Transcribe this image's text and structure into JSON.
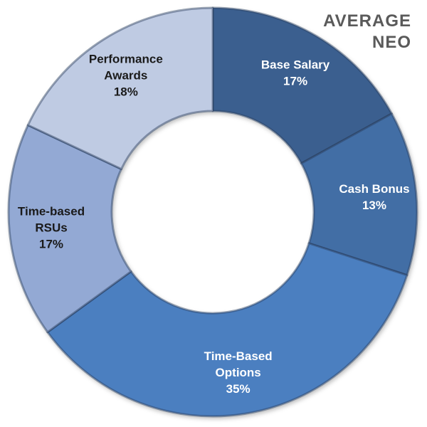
{
  "chart_data": {
    "type": "pie",
    "donut": true,
    "title_lines": [
      "AVERAGE",
      "NEO"
    ],
    "slices": [
      {
        "label_lines": [
          "Base Salary"
        ],
        "value": 17,
        "value_label": "17%",
        "color": "#3b5f8f",
        "label_color": "light"
      },
      {
        "label_lines": [
          "Cash Bonus"
        ],
        "value": 13,
        "value_label": "13%",
        "color": "#426ea5",
        "label_color": "light"
      },
      {
        "label_lines": [
          "Time-Based",
          "Options"
        ],
        "value": 35,
        "value_label": "35%",
        "color": "#4c7fc0",
        "label_color": "light"
      },
      {
        "label_lines": [
          "Time-based",
          "RSUs"
        ],
        "value": 17,
        "value_label": "17%",
        "color": "#93a9d4",
        "label_color": "dark"
      },
      {
        "label_lines": [
          "Performance",
          "Awards"
        ],
        "value": 18,
        "value_label": "18%",
        "color": "#bfcbe3",
        "label_color": "dark"
      }
    ],
    "legend": "none"
  }
}
